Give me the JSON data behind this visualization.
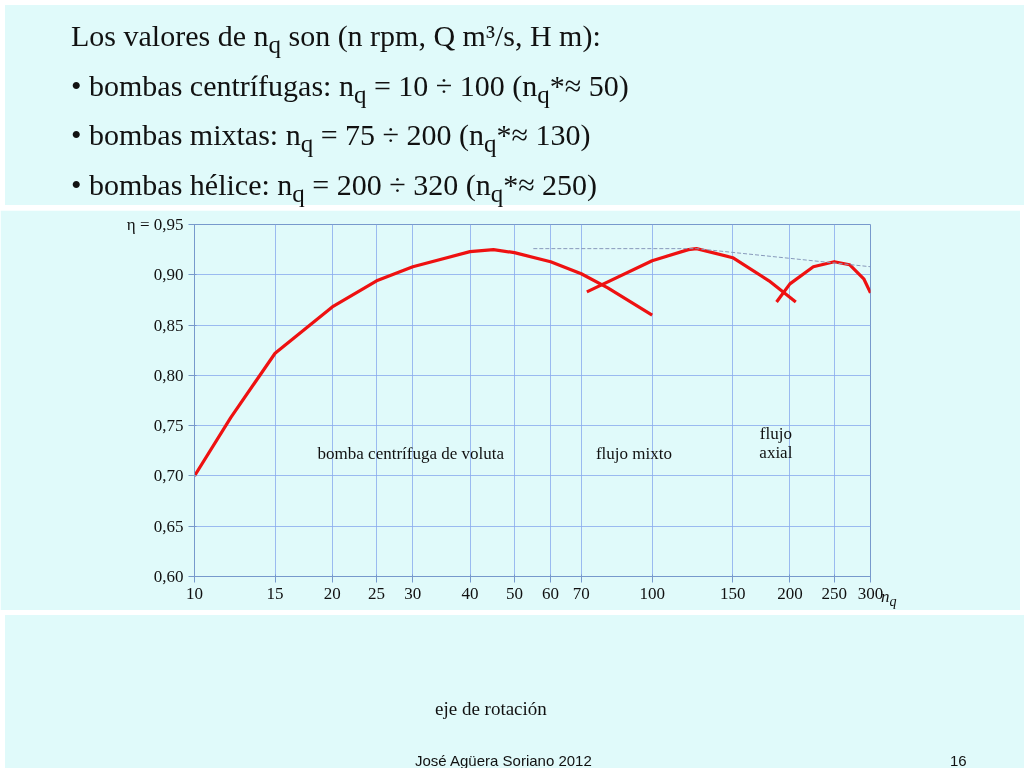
{
  "chart_data": {
    "type": "line",
    "xlabel": "n$_{q}$",
    "log": "x",
    "xlim": [
      10,
      300
    ],
    "xticks": [
      10,
      15,
      20,
      25,
      30,
      40,
      50,
      60,
      70,
      100,
      150,
      200,
      250,
      300
    ],
    "ylim": [
      0.6,
      0.95
    ],
    "yticks": [
      {
        "value": 0.6,
        "label": "0,60"
      },
      {
        "value": 0.65,
        "label": "0,65"
      },
      {
        "value": 0.7,
        "label": "0,70"
      },
      {
        "value": 0.75,
        "label": "0,75"
      },
      {
        "value": 0.8,
        "label": "0,80"
      },
      {
        "value": 0.85,
        "label": "0,85"
      },
      {
        "value": 0.9,
        "label": "0,90"
      },
      {
        "value": 0.95,
        "label": "η = 0,95"
      }
    ],
    "grid": true,
    "marker": "none",
    "series": [
      {
        "color": "#ee1111",
        "line_style": "solid",
        "x": [
          10,
          12,
          15,
          20,
          25,
          30,
          40,
          45,
          50,
          60,
          70,
          80,
          100
        ],
        "values": [
          0.7,
          0.758,
          0.822,
          0.868,
          0.894,
          0.908,
          0.923,
          0.925,
          0.922,
          0.913,
          0.901,
          0.887,
          0.86
        ]
      },
      {
        "color": "#ee1111",
        "line_style": "solid",
        "x": [
          72,
          100,
          120,
          125,
          150,
          180,
          206
        ],
        "values": [
          0.883,
          0.914,
          0.925,
          0.926,
          0.917,
          0.894,
          0.873
        ]
      },
      {
        "color": "#ee1111",
        "line_style": "solid",
        "x": [
          187,
          200,
          225,
          250,
          270,
          290,
          300
        ],
        "values": [
          0.873,
          0.891,
          0.908,
          0.913,
          0.91,
          0.896,
          0.882
        ]
      },
      {
        "color": "#8899bb",
        "line_style": "dashed",
        "x": [
          55,
          125,
          300
        ],
        "values": [
          0.926,
          0.926,
          0.908
        ]
      }
    ],
    "annotations": [
      "Los valores de n$_{q}$ son (n rpm, Q m³/s, H m):",
      "• bombas centrífugas: n$_{q}$ = 10 ÷ 100 (n$_{q}$*≈ 50)",
      "• bombas mixtas: n$_{q}$ = 75 ÷ 200 (n$_{q}$*≈ 130)",
      "• bombas hélice: n$_{q}$ = 200 ÷ 320 (n$_{q}$*≈ 250)",
      "bomba centrífuga de voluta",
      "flujo mixto",
      "flujo\naxial",
      "eje de rotación",
      "José Agüera Soriano 2012",
      "16"
    ]
  }
}
